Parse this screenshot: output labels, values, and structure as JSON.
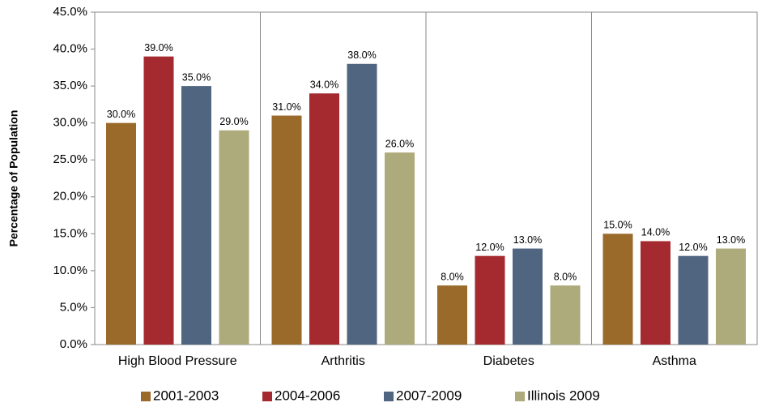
{
  "chart_data": {
    "type": "bar",
    "y_label": "Percentage of Population",
    "categories": [
      "High Blood Pressure",
      "Arthritis",
      "Diabetes",
      "Asthma"
    ],
    "series": [
      {
        "name": "2001-2003",
        "color": "#9a6a2b",
        "values": [
          30,
          31,
          8,
          15
        ],
        "value_labels": [
          "30.0%",
          "31.0%",
          "8.0%",
          "15.0%"
        ]
      },
      {
        "name": "2004-2006",
        "color": "#a52a2f",
        "values": [
          39,
          34,
          12,
          14
        ],
        "value_labels": [
          "39.0%",
          "34.0%",
          "12.0%",
          "14.0%"
        ]
      },
      {
        "name": "2007-2009",
        "color": "#4f6580",
        "values": [
          35,
          38,
          13,
          12
        ],
        "value_labels": [
          "35.0%",
          "38.0%",
          "13.0%",
          "12.0%"
        ]
      },
      {
        "name": "Illinois 2009",
        "color": "#adaa7c",
        "values": [
          29,
          26,
          8,
          13
        ],
        "value_labels": [
          "29.0%",
          "26.0%",
          "8.0%",
          "13.0%"
        ]
      }
    ],
    "ylim": [
      0,
      45
    ],
    "yticks": [
      {
        "value": 0,
        "label": "0.0%"
      },
      {
        "value": 5,
        "label": "5.0%"
      },
      {
        "value": 10,
        "label": "10.0%"
      },
      {
        "value": 15,
        "label": "15.0%"
      },
      {
        "value": 20,
        "label": "20.0%"
      },
      {
        "value": 25,
        "label": "25.0%"
      },
      {
        "value": 30,
        "label": "30.0%"
      },
      {
        "value": 35,
        "label": "35.0%"
      },
      {
        "value": 40,
        "label": "40.0%"
      },
      {
        "value": 45,
        "label": "45.0%"
      }
    ],
    "legend": "bottom"
  }
}
